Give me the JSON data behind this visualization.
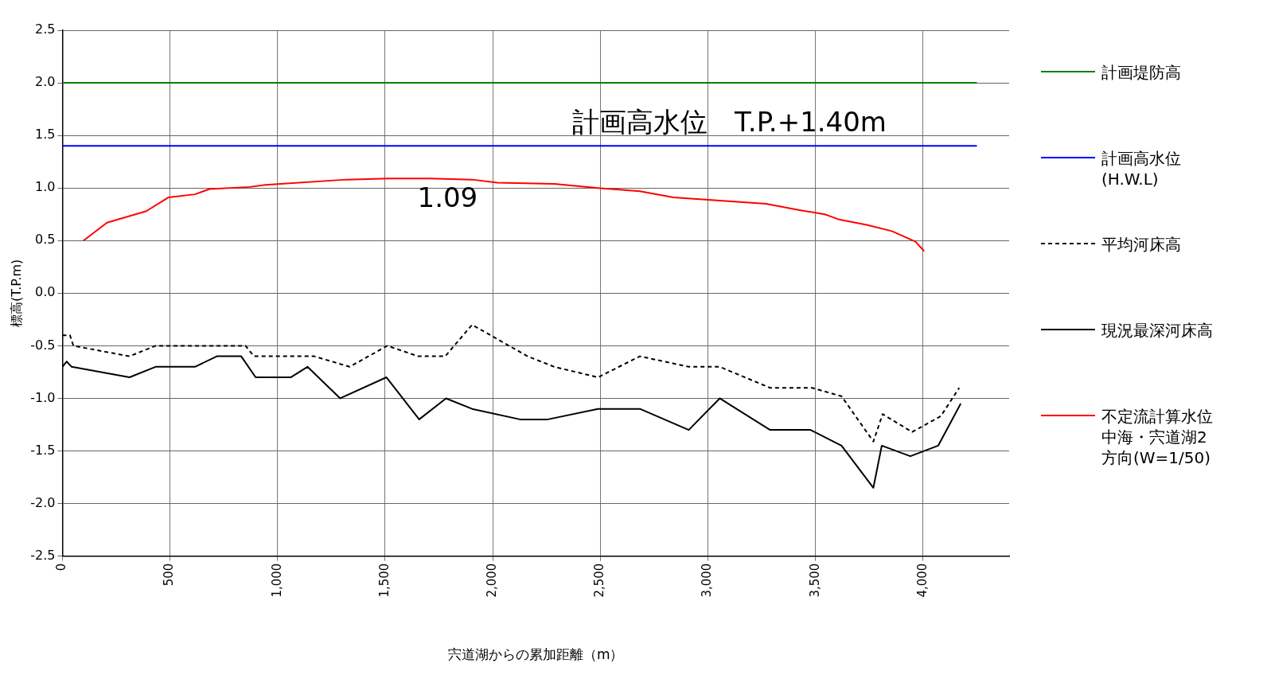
{
  "chart_data": {
    "type": "line",
    "xlabel": "宍道湖からの累加距離（m）",
    "ylabel": "標高(T.P.m)",
    "xlim": [
      0,
      4400
    ],
    "ylim": [
      -2.5,
      2.5
    ],
    "xticks": [
      {
        "value": 0,
        "label": "0"
      },
      {
        "value": 500,
        "label": "500"
      },
      {
        "value": 1000,
        "label": "1,000"
      },
      {
        "value": 1500,
        "label": "1,500"
      },
      {
        "value": 2000,
        "label": "2,000"
      },
      {
        "value": 2500,
        "label": "2,500"
      },
      {
        "value": 3000,
        "label": "3,000"
      },
      {
        "value": 3500,
        "label": "3,500"
      },
      {
        "value": 4000,
        "label": "4,000"
      }
    ],
    "yticks": [
      {
        "value": 2.5,
        "label": "2.5"
      },
      {
        "value": 2,
        "label": "2.0"
      },
      {
        "value": 1.5,
        "label": "1.5"
      },
      {
        "value": 1,
        "label": "1.0"
      },
      {
        "value": 0.5,
        "label": "0.5"
      },
      {
        "value": 0,
        "label": "0.0"
      },
      {
        "value": -0.5,
        "label": "-0.5"
      },
      {
        "value": -1,
        "label": "-1.0"
      },
      {
        "value": -1.5,
        "label": "-1.5"
      },
      {
        "value": -2,
        "label": "-2.0"
      },
      {
        "value": -2.5,
        "label": "-2.5"
      }
    ],
    "grid": true,
    "legend": "right",
    "marker": "none",
    "annotations": [
      {
        "text": "計画高水位　T.P.+1.40m",
        "x": 3100,
        "y": 1.4
      },
      {
        "text": "1.09",
        "x": 1790,
        "y": 1.09
      }
    ],
    "series": [
      {
        "name": "計画堤防高",
        "color": "#008000",
        "x": [
          0,
          4250
        ],
        "values": [
          2.0,
          2.0
        ]
      },
      {
        "name": "計画高水位(H.W.L)",
        "color": "#0000ff",
        "x": [
          0,
          4250
        ],
        "values": [
          1.4,
          1.4
        ]
      },
      {
        "name": "平均河床高",
        "color": "#000000",
        "line_style": "dashed",
        "x": [
          0,
          35,
          51,
          312,
          433,
          851,
          890,
          1170,
          1335,
          1510,
          1654,
          1779,
          1904,
          2162,
          2286,
          2489,
          2684,
          2911,
          3055,
          3289,
          3484,
          3621,
          3769,
          3812,
          3949,
          4082,
          4168
        ],
        "values": [
          -0.4,
          -0.4,
          -0.5,
          -0.6,
          -0.5,
          -0.5,
          -0.6,
          -0.6,
          -0.7,
          -0.5,
          -0.6,
          -0.6,
          -0.3,
          -0.6,
          -0.7,
          -0.8,
          -0.6,
          -0.7,
          -0.7,
          -0.9,
          -0.9,
          -0.98,
          -1.41,
          -1.15,
          -1.32,
          -1.17,
          -0.9
        ]
      },
      {
        "name": "現況最深河床高",
        "color": "#000000",
        "x": [
          0,
          20,
          43,
          312,
          433,
          616,
          718,
          831,
          898,
          1061,
          1139,
          1291,
          1506,
          1658,
          1783,
          1904,
          2127,
          2256,
          2489,
          2684,
          2911,
          3055,
          3289,
          3477,
          3621,
          3769,
          3808,
          3941,
          4070,
          4175
        ],
        "values": [
          -0.7,
          -0.65,
          -0.7,
          -0.8,
          -0.7,
          -0.7,
          -0.6,
          -0.6,
          -0.8,
          -0.8,
          -0.7,
          -1.0,
          -0.8,
          -1.2,
          -1.0,
          -1.1,
          -1.2,
          -1.2,
          -1.1,
          -1.1,
          -1.3,
          -1.0,
          -1.3,
          -1.3,
          -1.45,
          -1.85,
          -1.45,
          -1.55,
          -1.45,
          -1.05
        ]
      },
      {
        "name": "不定流計算水位中海・宍道湖2方向(W=1/50)",
        "color": "#ff0000",
        "x": [
          98,
          207,
          390,
          492,
          616,
          683,
          870,
          944,
          1319,
          1514,
          1709,
          1904,
          2021,
          2286,
          2489,
          2684,
          2840,
          3270,
          3426,
          3543,
          3570,
          3610,
          3738,
          3855,
          3965,
          4005
        ],
        "values": [
          0.5,
          0.67,
          0.78,
          0.91,
          0.94,
          0.99,
          1.01,
          1.03,
          1.08,
          1.09,
          1.09,
          1.08,
          1.05,
          1.04,
          1.0,
          0.97,
          0.91,
          0.85,
          0.79,
          0.75,
          0.73,
          0.7,
          0.65,
          0.59,
          0.49,
          0.4
        ]
      }
    ]
  }
}
